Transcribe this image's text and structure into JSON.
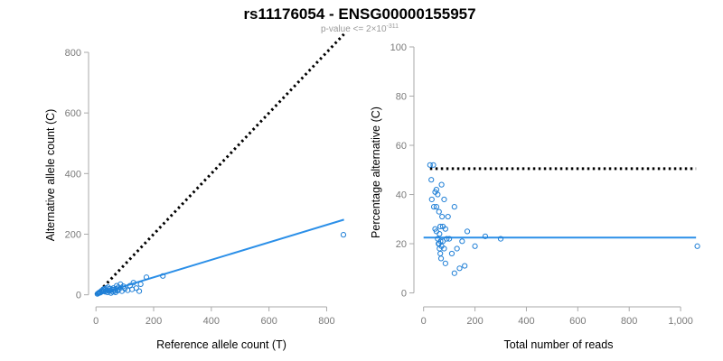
{
  "title": "rs11176054 - ENSG00000155957",
  "subtitle": "p-value <= 2×10",
  "subtitle_exponent": "-311",
  "colors": {
    "points": "#1f7fd6",
    "fit": "#2b8fe8",
    "reference": "#000000"
  },
  "chart_data": [
    {
      "type": "scatter",
      "xlabel": "Reference allele count (T)",
      "ylabel": "Alternative allele count (C)",
      "xlim": [
        -10,
        880
      ],
      "ylim": [
        -10,
        800
      ],
      "xticks": [
        0,
        200,
        400,
        600,
        800
      ],
      "xtick_labels": [
        "0",
        "200",
        "400",
        "600",
        "800"
      ],
      "yticks": [
        0,
        200,
        400,
        600,
        800
      ],
      "ytick_labels": [
        "0",
        "200",
        "400",
        "600",
        "800"
      ],
      "reference_line": {
        "style": "dotted",
        "from": [
          0,
          0
        ],
        "to": [
          860,
          860
        ]
      },
      "fit_line": {
        "style": "solid",
        "from": [
          0,
          0
        ],
        "to": [
          860,
          248
        ]
      },
      "points": [
        [
          5,
          3
        ],
        [
          8,
          5
        ],
        [
          10,
          6
        ],
        [
          12,
          8
        ],
        [
          15,
          7
        ],
        [
          18,
          12
        ],
        [
          20,
          10
        ],
        [
          22,
          14
        ],
        [
          25,
          18
        ],
        [
          28,
          12
        ],
        [
          30,
          20
        ],
        [
          32,
          10
        ],
        [
          35,
          22
        ],
        [
          38,
          15
        ],
        [
          40,
          8
        ],
        [
          42,
          25
        ],
        [
          45,
          12
        ],
        [
          48,
          20
        ],
        [
          50,
          14
        ],
        [
          52,
          6
        ],
        [
          55,
          18
        ],
        [
          58,
          10
        ],
        [
          60,
          22
        ],
        [
          62,
          16
        ],
        [
          65,
          12
        ],
        [
          68,
          8
        ],
        [
          70,
          20
        ],
        [
          72,
          30
        ],
        [
          75,
          14
        ],
        [
          78,
          25
        ],
        [
          80,
          18
        ],
        [
          85,
          35
        ],
        [
          90,
          12
        ],
        [
          95,
          28
        ],
        [
          100,
          20
        ],
        [
          110,
          15
        ],
        [
          118,
          30
        ],
        [
          125,
          18
        ],
        [
          130,
          40
        ],
        [
          140,
          22
        ],
        [
          150,
          12
        ],
        [
          155,
          35
        ],
        [
          175,
          58
        ],
        [
          232,
          62
        ],
        [
          858,
          198
        ]
      ],
      "grid": false
    },
    {
      "type": "scatter",
      "xlabel": "Total number of reads",
      "ylabel": "Percentage alternative (C)",
      "xlim": [
        -20,
        1070
      ],
      "ylim": [
        -2,
        100
      ],
      "xticks": [
        0,
        200,
        400,
        600,
        800,
        1000
      ],
      "xtick_labels": [
        "0",
        "200",
        "400",
        "600",
        "800",
        "1,000"
      ],
      "yticks": [
        0,
        20,
        40,
        60,
        80,
        100
      ],
      "ytick_labels": [
        "0",
        "20",
        "40",
        "60",
        "80",
        "100"
      ],
      "reference_line": {
        "style": "dotted",
        "y": 50.5,
        "from_x": 25,
        "to_x": 1060
      },
      "fit_line": {
        "style": "solid",
        "y": 22.5,
        "from_x": 0,
        "to_x": 1060
      },
      "points": [
        [
          25,
          52
        ],
        [
          38,
          52
        ],
        [
          30,
          46
        ],
        [
          32,
          38
        ],
        [
          40,
          35
        ],
        [
          45,
          41
        ],
        [
          50,
          42
        ],
        [
          55,
          40
        ],
        [
          50,
          35
        ],
        [
          60,
          33
        ],
        [
          70,
          44
        ],
        [
          72,
          31
        ],
        [
          80,
          38
        ],
        [
          65,
          27
        ],
        [
          75,
          27
        ],
        [
          85,
          26
        ],
        [
          90,
          22
        ],
        [
          95,
          31
        ],
        [
          120,
          35
        ],
        [
          45,
          26
        ],
        [
          50,
          25
        ],
        [
          55,
          22
        ],
        [
          60,
          20
        ],
        [
          62,
          18
        ],
        [
          65,
          16
        ],
        [
          68,
          14
        ],
        [
          70,
          19
        ],
        [
          75,
          21
        ],
        [
          80,
          18
        ],
        [
          85,
          12
        ],
        [
          100,
          22
        ],
        [
          110,
          16
        ],
        [
          120,
          8
        ],
        [
          130,
          18
        ],
        [
          140,
          10
        ],
        [
          150,
          21
        ],
        [
          160,
          11
        ],
        [
          170,
          25
        ],
        [
          200,
          19
        ],
        [
          240,
          23
        ],
        [
          300,
          22
        ],
        [
          1065,
          19
        ],
        [
          58,
          20
        ],
        [
          62,
          24
        ],
        [
          66,
          21
        ]
      ],
      "grid": false
    }
  ]
}
